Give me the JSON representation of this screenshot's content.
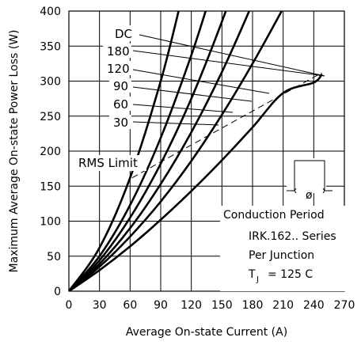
{
  "chart_data": {
    "type": "line",
    "title": "",
    "xlabel": "Average On-state Current (A)",
    "ylabel": "Maximum Average On-state Power Loss (W)",
    "xlim": [
      0,
      270
    ],
    "ylim": [
      0,
      400
    ],
    "xticks": [
      0,
      30,
      60,
      90,
      120,
      150,
      180,
      210,
      240,
      270
    ],
    "yticks": [
      0,
      50,
      100,
      150,
      200,
      250,
      300,
      350,
      400
    ],
    "grid": true,
    "series": [
      {
        "name": "DC",
        "x": [
          0,
          30,
          60,
          90,
          120,
          150,
          180,
          210,
          240,
          248
        ],
        "y": [
          0,
          30,
          64,
          102,
          143,
          187,
          234,
          283,
          298,
          310
        ]
      },
      {
        "name": "180",
        "x": [
          0,
          30,
          60,
          90,
          120,
          150,
          180,
          210,
          225
        ],
        "y": [
          0,
          35,
          78,
          128,
          186,
          252,
          325,
          404,
          446
        ]
      },
      {
        "name": "120",
        "x": [
          0,
          30,
          60,
          90,
          120,
          150,
          180,
          195
        ],
        "y": [
          0,
          39,
          90,
          153,
          227,
          313,
          411,
          464
        ]
      },
      {
        "name": "90",
        "x": [
          0,
          30,
          60,
          90,
          120,
          150,
          170
        ],
        "y": [
          0,
          44,
          105,
          182,
          275,
          385,
          468
        ]
      },
      {
        "name": "60",
        "x": [
          0,
          30,
          60,
          90,
          120,
          140
        ],
        "y": [
          0,
          50,
          123,
          219,
          337,
          428
        ]
      },
      {
        "name": "30",
        "x": [
          0,
          30,
          60,
          90,
          110
        ],
        "y": [
          0,
          62,
          162,
          300,
          415
        ]
      }
    ],
    "rms_limit": {
      "label": "RMS Limit",
      "x": [
        62,
        248
      ],
      "y": [
        162,
        312
      ]
    },
    "legend_labels": [
      "DC",
      "180",
      "120",
      "90",
      "60",
      "30"
    ],
    "conduction_label": "Conduction Period",
    "conduction_symbol": "ø",
    "info_lines": [
      "IRK.162.. Series",
      "Per Junction",
      "= 125 C"
    ],
    "tj_main": "T",
    "tj_sub": "J"
  }
}
